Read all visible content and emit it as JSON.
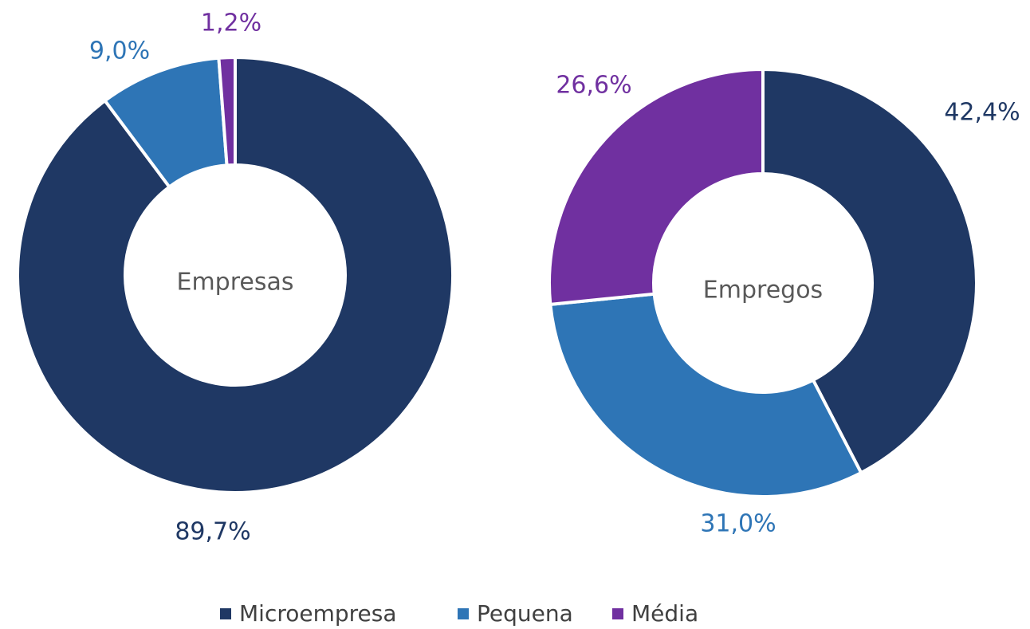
{
  "chart_data": [
    {
      "type": "donut",
      "title": "Empresas",
      "categories": [
        "Microempresa",
        "Pequena",
        "Média"
      ],
      "values": [
        89.7,
        9.0,
        1.2
      ],
      "value_labels": [
        "89,7%",
        "9,0%",
        "1,2%"
      ],
      "colors": [
        "#1f3864",
        "#2e75b6",
        "#7030a0"
      ]
    },
    {
      "type": "donut",
      "title": "Empregos",
      "categories": [
        "Microempresa",
        "Pequena",
        "Média"
      ],
      "values": [
        42.4,
        31.0,
        26.6
      ],
      "value_labels": [
        "42,4%",
        "31,0%",
        "26,6%"
      ],
      "colors": [
        "#1f3864",
        "#2e75b6",
        "#7030a0"
      ]
    }
  ]
}
